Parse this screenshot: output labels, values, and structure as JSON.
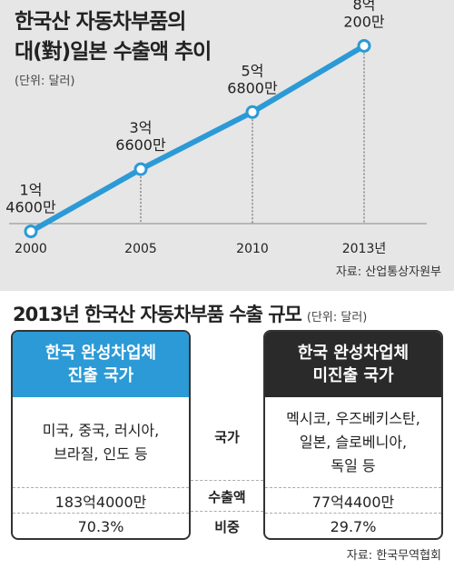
{
  "title_line1": "한국산 자동차부품의",
  "title_line2": "대(對)일본 수출액 추이",
  "unit": "(단위: 달러)",
  "chart_data": {
    "type": "line",
    "x": [
      "2000",
      "2005",
      "2010",
      "2013년"
    ],
    "values": [
      1.46,
      3.66,
      5.68,
      8.02
    ],
    "point_labels": [
      [
        "1억",
        "4600만"
      ],
      [
        "3억",
        "6600만"
      ],
      [
        "5억",
        "6800만"
      ],
      [
        "8억",
        "200만"
      ]
    ],
    "ylim": [
      0,
      9
    ],
    "color": "#2b9ad6"
  },
  "source1": "자료: 산업통상자원부",
  "section2": {
    "title": "2013년 한국산 자동차부품 수출 규모",
    "unit": "(단위: 달러)",
    "row_labels": {
      "country": "국가",
      "amount": "수출액",
      "share": "비중"
    },
    "left": {
      "header": "한국 완성차업체\n진출 국가",
      "countries": "미국, 중국, 러시아,\n브라질, 인도 등",
      "amount": "183억4000만",
      "share": "70.3%"
    },
    "right": {
      "header": "한국 완성차업체\n미진출 국가",
      "countries": "멕시코, 우즈베키스탄,\n일본, 슬로베니아,\n독일 등",
      "amount": "77억4400만",
      "share": "29.7%"
    },
    "source": "자료: 한국무역협회"
  },
  "colors": {
    "accent": "#2b9ad6",
    "dark": "#2a2a2a",
    "panel_bg": "#e6e6e6"
  }
}
